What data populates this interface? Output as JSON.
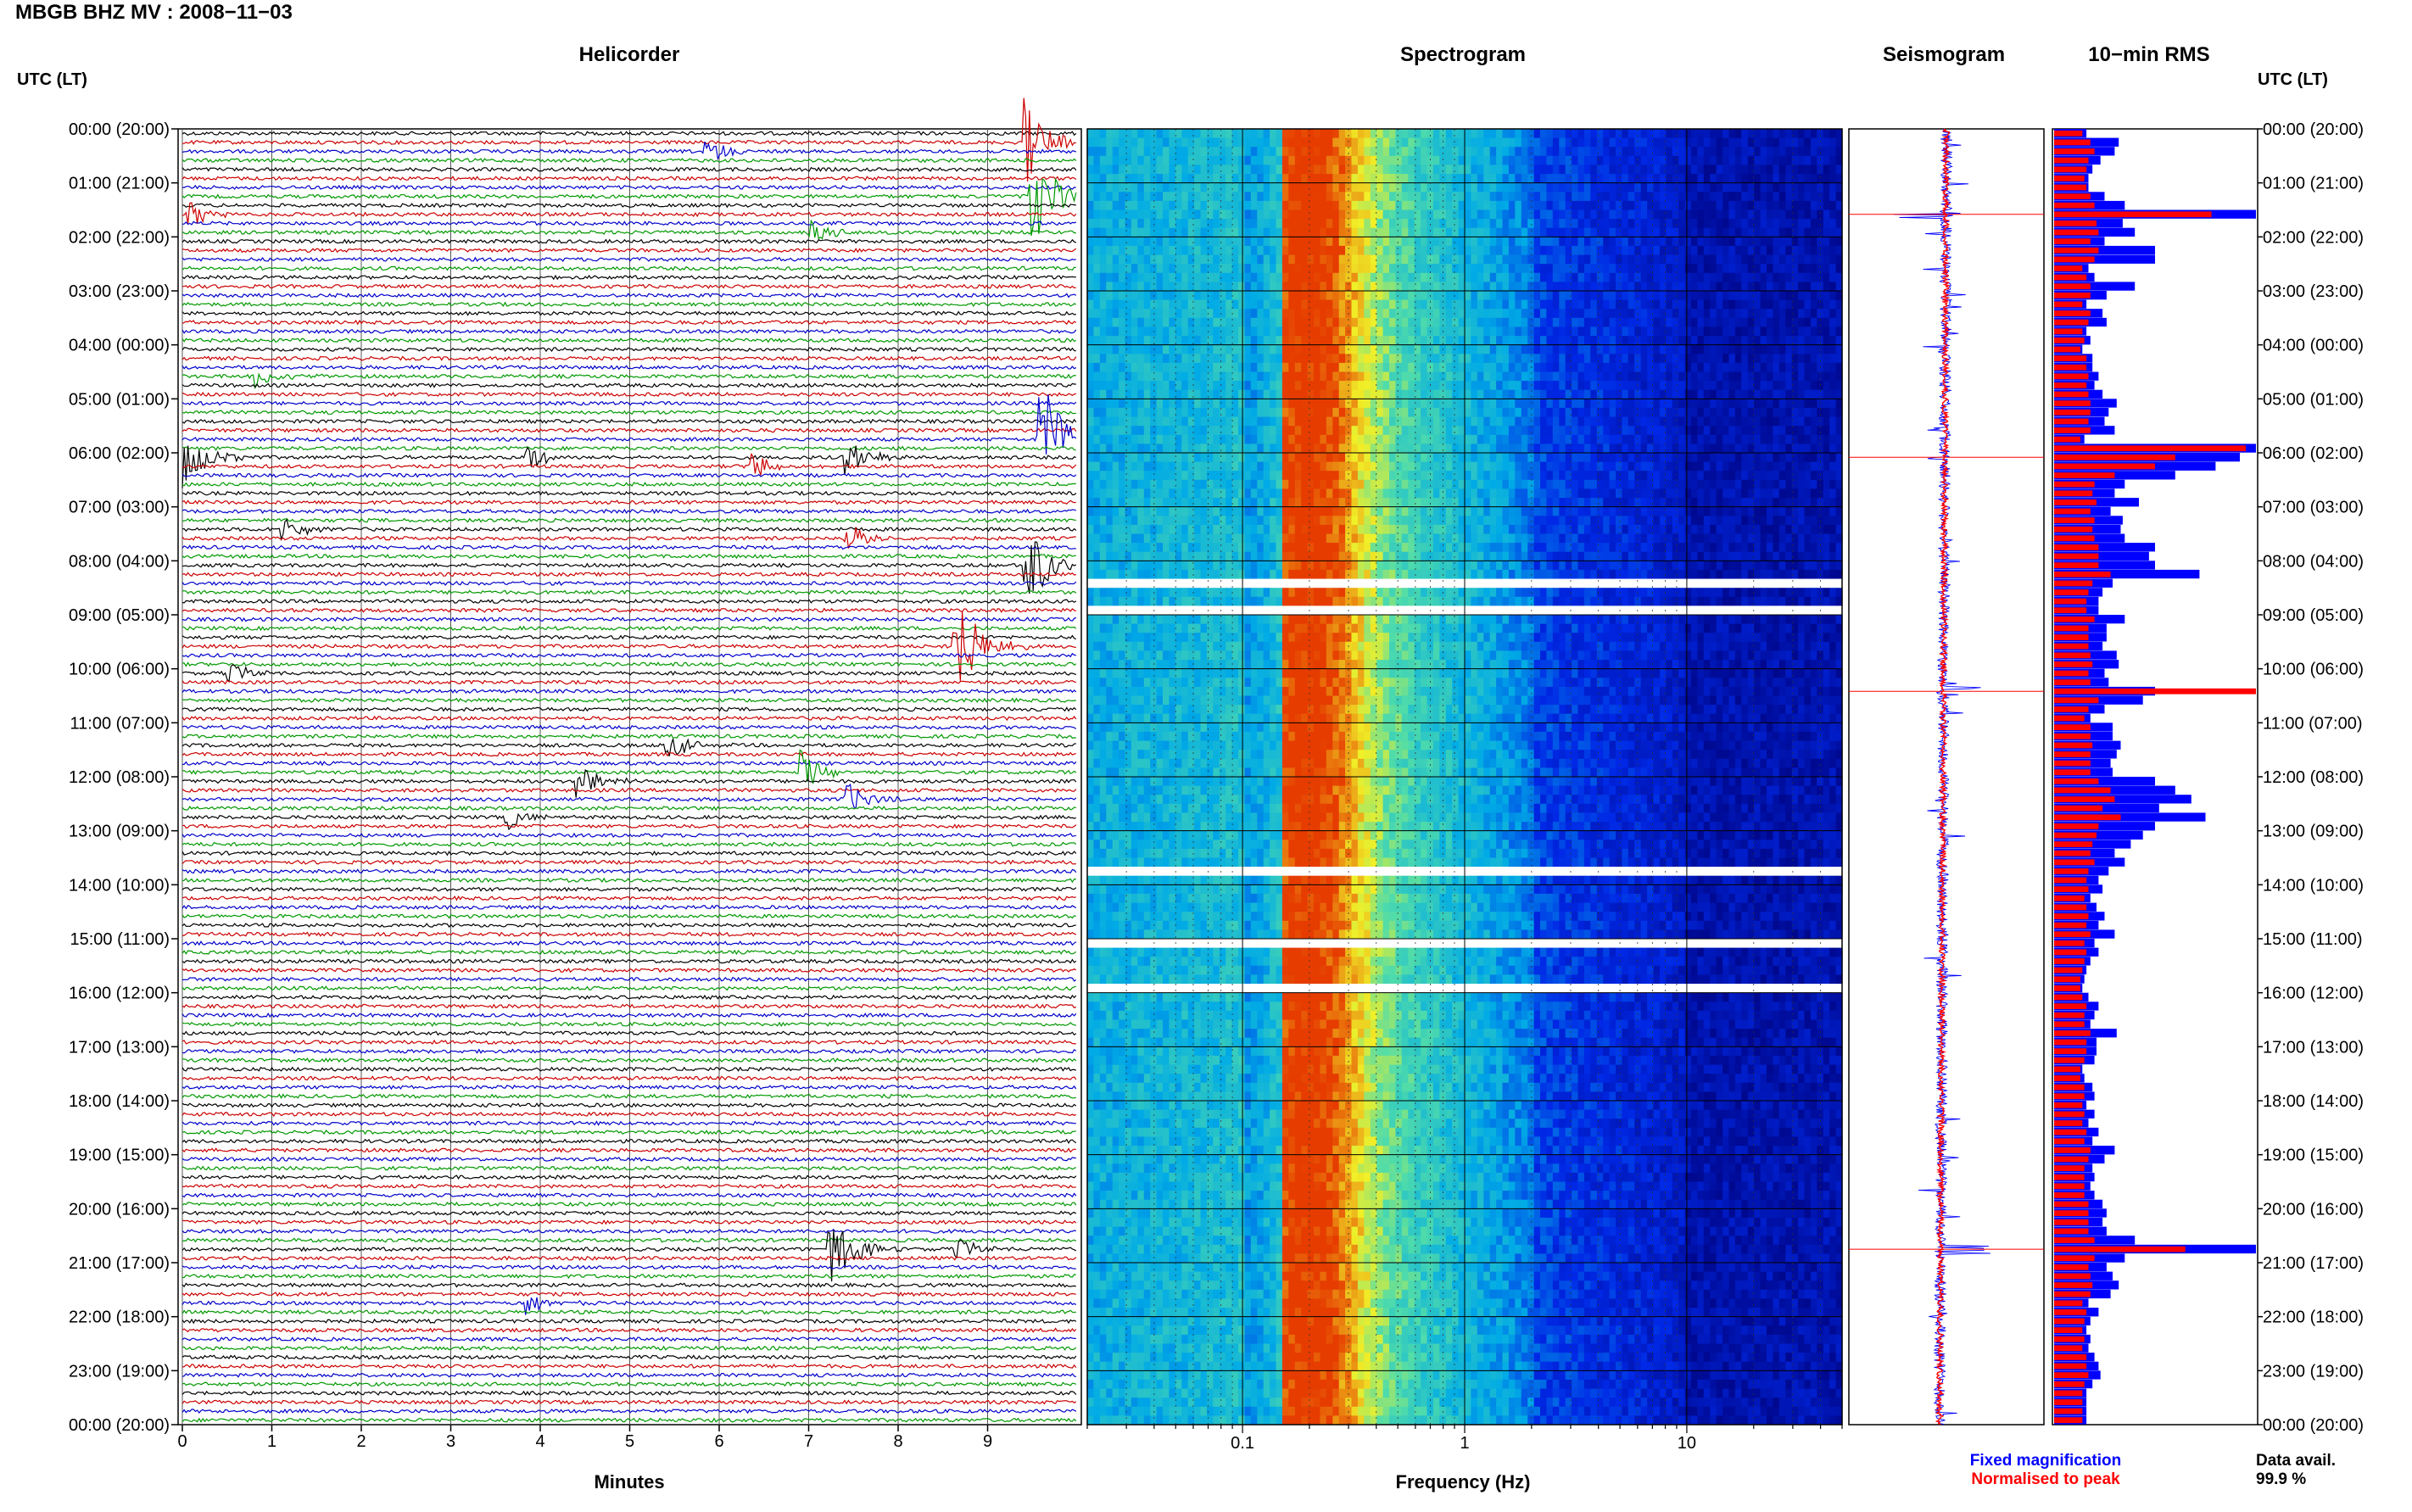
{
  "figure": {
    "title": "MBGB BHZ MV : 2008−11−03",
    "utc_label": "UTC (LT)",
    "data_avail_label": "Data avail.",
    "data_avail_value": "99.9 %"
  },
  "panels": {
    "helicorder": {
      "title": "Helicorder",
      "xlabel": "Minutes"
    },
    "spectrogram": {
      "title": "Spectrogram",
      "xlabel": "Frequency (Hz)"
    },
    "seismogram": {
      "title": "Seismogram",
      "legend": [
        "Fixed magnification",
        "Normalised to peak"
      ]
    },
    "rms": {
      "title": "10−min RMS"
    }
  },
  "time_labels": [
    "00:00 (20:00)",
    "01:00 (21:00)",
    "02:00 (22:00)",
    "03:00 (23:00)",
    "04:00 (00:00)",
    "05:00 (01:00)",
    "06:00 (02:00)",
    "07:00 (03:00)",
    "08:00 (04:00)",
    "09:00 (05:00)",
    "10:00 (06:00)",
    "11:00 (07:00)",
    "12:00 (08:00)",
    "13:00 (09:00)",
    "14:00 (10:00)",
    "15:00 (11:00)",
    "16:00 (12:00)",
    "17:00 (13:00)",
    "18:00 (14:00)",
    "19:00 (15:00)",
    "20:00 (16:00)",
    "21:00 (17:00)",
    "22:00 (18:00)",
    "23:00 (19:00)",
    "00:00 (20:00)"
  ],
  "colors": {
    "trace_cycle": [
      "#000000",
      "#cc0000",
      "#0000cc",
      "#009900"
    ],
    "fixed": "#0000ff",
    "normalised": "#ff0000"
  },
  "chart_data": [
    {
      "type": "line",
      "name": "helicorder",
      "x_ticks": [
        "0",
        "1",
        "2",
        "3",
        "4",
        "5",
        "6",
        "7",
        "8",
        "9"
      ],
      "xlim": [
        0,
        10
      ],
      "rows": 144,
      "minutes_per_row": 10,
      "events": [
        {
          "row": 1,
          "minute": 9.4,
          "amp": 3.5
        },
        {
          "row": 2,
          "minute": 5.8,
          "amp": 1.0
        },
        {
          "row": 7,
          "minute": 9.45,
          "amp": 4.5
        },
        {
          "row": 9,
          "minute": 0.05,
          "amp": 1.2
        },
        {
          "row": 11,
          "minute": 7.0,
          "amp": 1.0
        },
        {
          "row": 27,
          "minute": 0.8,
          "amp": 0.9
        },
        {
          "row": 34,
          "minute": 9.55,
          "amp": 5.5
        },
        {
          "row": 36,
          "minute": 0.0,
          "amp": 2.4
        },
        {
          "row": 37,
          "minute": 6.3,
          "amp": 1.5
        },
        {
          "row": 36,
          "minute": 7.4,
          "amp": 1.8
        },
        {
          "row": 36,
          "minute": 3.8,
          "amp": 1.2
        },
        {
          "row": 44,
          "minute": 1.1,
          "amp": 1.1
        },
        {
          "row": 48,
          "minute": 9.4,
          "amp": 4.0
        },
        {
          "row": 45,
          "minute": 7.4,
          "amp": 1.2
        },
        {
          "row": 57,
          "minute": 8.6,
          "amp": 5.0
        },
        {
          "row": 60,
          "minute": 0.5,
          "amp": 1.0
        },
        {
          "row": 68,
          "minute": 5.4,
          "amp": 1.1
        },
        {
          "row": 71,
          "minute": 6.9,
          "amp": 1.6
        },
        {
          "row": 72,
          "minute": 4.4,
          "amp": 1.4
        },
        {
          "row": 74,
          "minute": 7.4,
          "amp": 1.3
        },
        {
          "row": 76,
          "minute": 3.6,
          "amp": 1.0
        },
        {
          "row": 124,
          "minute": 7.2,
          "amp": 3.5
        },
        {
          "row": 124,
          "minute": 8.6,
          "amp": 1.2
        },
        {
          "row": 130,
          "minute": 3.8,
          "amp": 1.0
        }
      ]
    },
    {
      "type": "heatmap",
      "name": "spectrogram",
      "x_scale": "log",
      "xlim": [
        0.02,
        50
      ],
      "x_ticks": [
        {
          "value": 0.1,
          "label": "0.1"
        },
        {
          "value": 1,
          "label": "1"
        },
        {
          "value": 10,
          "label": "10"
        }
      ],
      "peak_band_hz": [
        0.15,
        0.3
      ],
      "white_gap_rows": [
        50,
        53,
        82,
        90,
        95
      ]
    },
    {
      "type": "line",
      "name": "seismogram",
      "rows": 144,
      "spikes": [
        {
          "row": 9,
          "amp": 1.0
        },
        {
          "row": 36,
          "amp": 1.0
        },
        {
          "row": 62,
          "amp": 1.0
        },
        {
          "row": 124,
          "amp": 1.0
        }
      ]
    },
    {
      "type": "bar",
      "name": "rms_10min",
      "bins": 144,
      "fixed_values": [
        0.16,
        0.32,
        0.3,
        0.23,
        0.19,
        0.17,
        0.17,
        0.25,
        0.35,
        1.0,
        0.34,
        0.4,
        0.25,
        0.5,
        0.5,
        0.17,
        0.2,
        0.4,
        0.26,
        0.16,
        0.24,
        0.26,
        0.16,
        0.18,
        0.14,
        0.19,
        0.19,
        0.22,
        0.2,
        0.24,
        0.31,
        0.27,
        0.25,
        0.3,
        0.15,
        1.0,
        0.92,
        0.8,
        0.6,
        0.35,
        0.3,
        0.42,
        0.28,
        0.34,
        0.33,
        0.35,
        0.5,
        0.47,
        0.5,
        0.72,
        0.29,
        0.24,
        0.22,
        0.22,
        0.35,
        0.26,
        0.26,
        0.24,
        0.31,
        0.32,
        0.25,
        0.27,
        0.5,
        0.44,
        0.25,
        0.18,
        0.29,
        0.29,
        0.33,
        0.31,
        0.28,
        0.29,
        0.5,
        0.6,
        0.68,
        0.52,
        0.75,
        0.5,
        0.44,
        0.38,
        0.3,
        0.35,
        0.27,
        0.22,
        0.24,
        0.18,
        0.21,
        0.25,
        0.22,
        0.3,
        0.2,
        0.22,
        0.18,
        0.16,
        0.15,
        0.14,
        0.17,
        0.22,
        0.2,
        0.18,
        0.31,
        0.21,
        0.21,
        0.2,
        0.14,
        0.15,
        0.19,
        0.2,
        0.16,
        0.2,
        0.17,
        0.22,
        0.19,
        0.3,
        0.25,
        0.19,
        0.2,
        0.18,
        0.2,
        0.24,
        0.26,
        0.24,
        0.26,
        0.4,
        1.0,
        0.35,
        0.26,
        0.29,
        0.32,
        0.28,
        0.17,
        0.22,
        0.18,
        0.16,
        0.18,
        0.17,
        0.2,
        0.22,
        0.23,
        0.19,
        0.16,
        0.16,
        0.16,
        0.16
      ],
      "normalised_values": [
        0.14,
        0.18,
        0.2,
        0.17,
        0.16,
        0.15,
        0.16,
        0.18,
        0.2,
        0.78,
        0.21,
        0.22,
        0.18,
        0.22,
        0.2,
        0.14,
        0.16,
        0.18,
        0.18,
        0.14,
        0.18,
        0.17,
        0.14,
        0.15,
        0.13,
        0.16,
        0.16,
        0.17,
        0.16,
        0.17,
        0.18,
        0.18,
        0.17,
        0.18,
        0.13,
        0.95,
        0.6,
        0.5,
        0.3,
        0.2,
        0.19,
        0.21,
        0.18,
        0.2,
        0.19,
        0.2,
        0.22,
        0.22,
        0.22,
        0.28,
        0.19,
        0.17,
        0.16,
        0.16,
        0.2,
        0.17,
        0.17,
        0.17,
        0.18,
        0.19,
        0.17,
        0.18,
        1.0,
        0.22,
        0.17,
        0.15,
        0.18,
        0.18,
        0.19,
        0.18,
        0.18,
        0.18,
        0.22,
        0.28,
        0.3,
        0.24,
        0.33,
        0.22,
        0.21,
        0.19,
        0.18,
        0.2,
        0.17,
        0.16,
        0.17,
        0.15,
        0.16,
        0.17,
        0.16,
        0.18,
        0.15,
        0.16,
        0.15,
        0.14,
        0.13,
        0.13,
        0.14,
        0.16,
        0.15,
        0.15,
        0.18,
        0.16,
        0.16,
        0.15,
        0.13,
        0.13,
        0.15,
        0.15,
        0.14,
        0.15,
        0.14,
        0.16,
        0.15,
        0.18,
        0.17,
        0.15,
        0.15,
        0.15,
        0.15,
        0.17,
        0.17,
        0.17,
        0.17,
        0.2,
        0.65,
        0.2,
        0.17,
        0.18,
        0.19,
        0.18,
        0.14,
        0.16,
        0.15,
        0.14,
        0.15,
        0.14,
        0.16,
        0.16,
        0.17,
        0.15,
        0.14,
        0.14,
        0.14,
        0.14
      ]
    }
  ]
}
